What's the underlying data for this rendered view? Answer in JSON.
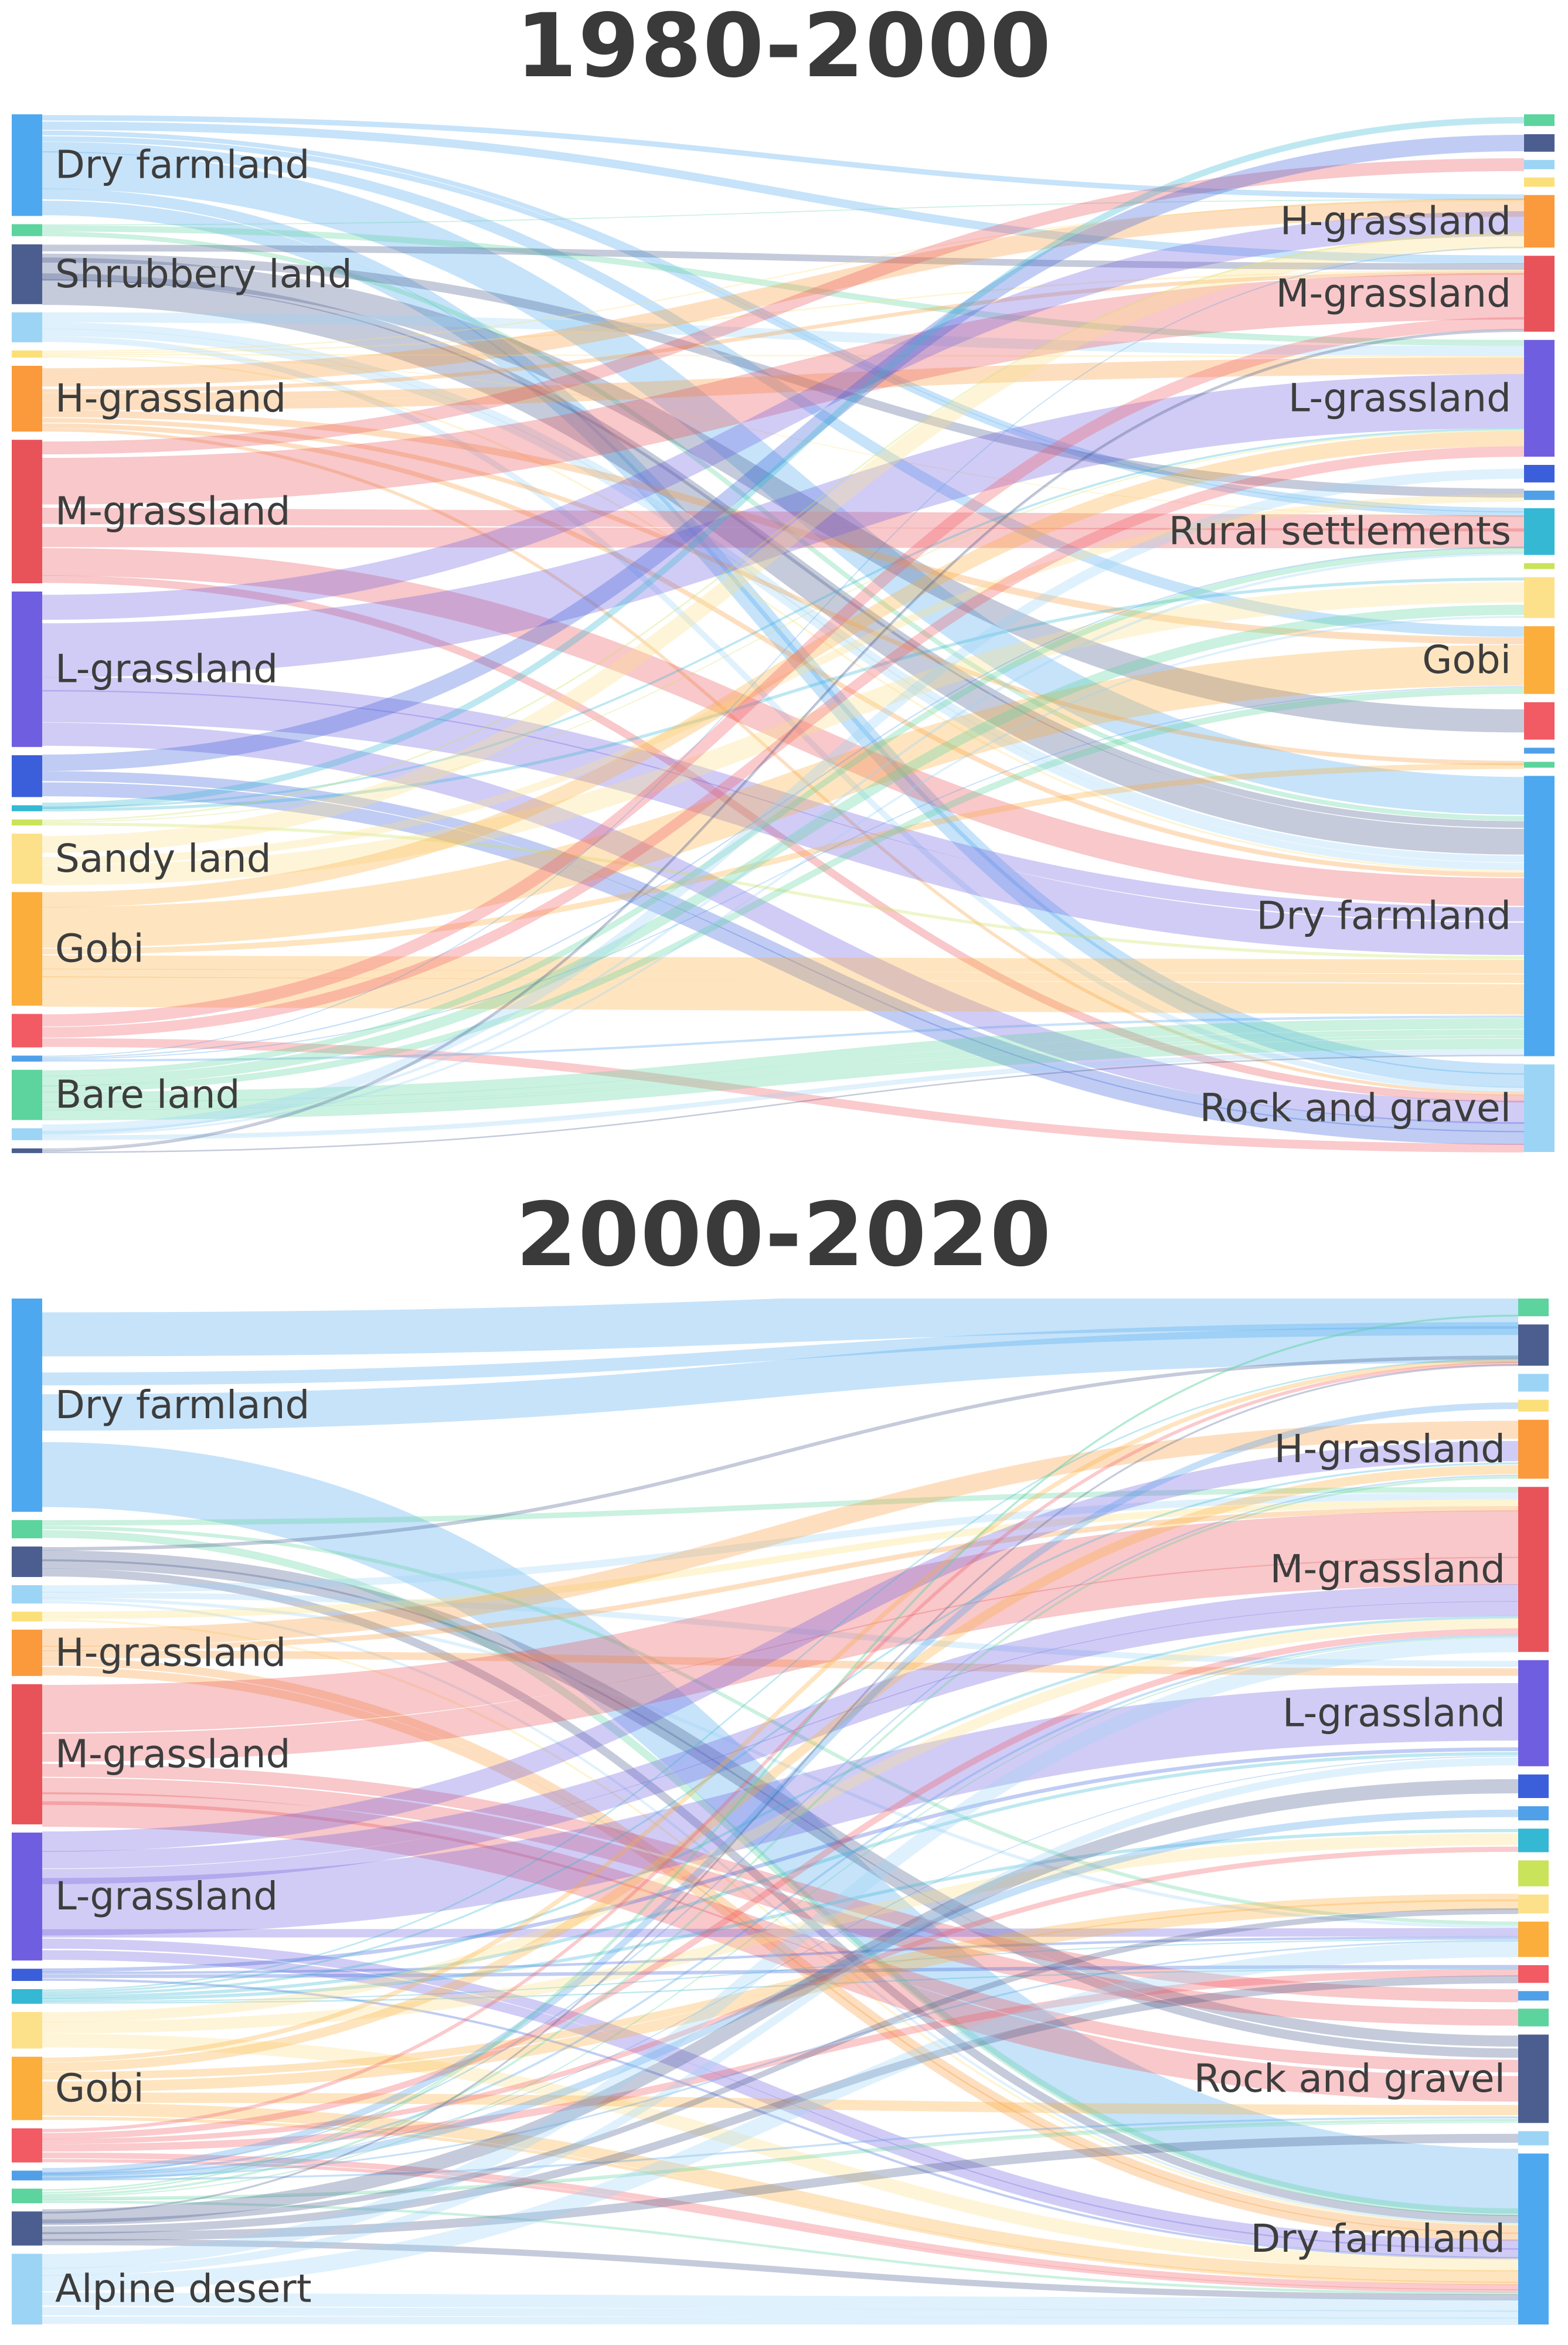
{
  "chart_data": [
    {
      "type": "sankey",
      "title": "1980-2000",
      "sources": [
        {
          "label": "Dry farmland",
          "color": "#4ea8f0",
          "weight": 8.5
        },
        {
          "label": "",
          "color": "#5dd39e",
          "weight": 1
        },
        {
          "label": "Shrubbery land",
          "color": "#4c5e8f",
          "weight": 5
        },
        {
          "label": "",
          "color": "#9cd4f5",
          "weight": 2.5
        },
        {
          "label": "",
          "color": "#fbe07a",
          "weight": 0.6
        },
        {
          "label": "H-grassland",
          "color": "#fa9a3c",
          "weight": 5.5
        },
        {
          "label": "M-grassland",
          "color": "#e8535a",
          "weight": 12
        },
        {
          "label": "L-grassland",
          "color": "#6f5fe0",
          "weight": 13
        },
        {
          "label": "",
          "color": "#3b5fdb",
          "weight": 3.5
        },
        {
          "label": "",
          "color": "#34b8d4",
          "weight": 0.5
        },
        {
          "label": "",
          "color": "#c9e35a",
          "weight": 0.5
        },
        {
          "label": "Sandy land",
          "color": "#fde08a",
          "weight": 4.2
        },
        {
          "label": "Gobi",
          "color": "#fbae3c",
          "weight": 9.5
        },
        {
          "label": "",
          "color": "#f25a64",
          "weight": 2.8
        },
        {
          "label": "",
          "color": "#4fa0e8",
          "weight": 0.5
        },
        {
          "label": "Bare land",
          "color": "#5dd39e",
          "weight": 4.2
        },
        {
          "label": "",
          "color": "#9cd4f5",
          "weight": 1
        },
        {
          "label": "",
          "color": "#4c5e8f",
          "weight": 0.3
        }
      ],
      "targets": [
        {
          "label": "",
          "color": "#5dd39e",
          "weight": 1
        },
        {
          "label": "",
          "color": "#4c5e8f",
          "weight": 1.5
        },
        {
          "label": "",
          "color": "#9cd4f5",
          "weight": 0.8
        },
        {
          "label": "",
          "color": "#fbe07a",
          "weight": 0.8
        },
        {
          "label": "H-grassland",
          "color": "#fa9a3c",
          "weight": 4.5
        },
        {
          "label": "M-grassland",
          "color": "#e8535a",
          "weight": 6.5
        },
        {
          "label": "L-grassland",
          "color": "#6f5fe0",
          "weight": 10
        },
        {
          "label": "",
          "color": "#3b5fdb",
          "weight": 1.5
        },
        {
          "label": "",
          "color": "#4fa0e8",
          "weight": 0.8
        },
        {
          "label": "Rural settlements",
          "color": "#34b8d4",
          "weight": 4
        },
        {
          "label": "",
          "color": "#c9e35a",
          "weight": 0.5
        },
        {
          "label": "",
          "color": "#fde08a",
          "weight": 3.5
        },
        {
          "label": "Gobi",
          "color": "#fbae3c",
          "weight": 5.8
        },
        {
          "label": "",
          "color": "#f25a64",
          "weight": 3.2
        },
        {
          "label": "",
          "color": "#4fa0e8",
          "weight": 0.5
        },
        {
          "label": "",
          "color": "#5dd39e",
          "weight": 0.5
        },
        {
          "label": "Dry farmland",
          "color": "#4ea8f0",
          "weight": 24
        },
        {
          "label": "Rock and gravel",
          "color": "#9cd4f5",
          "weight": 7.5
        }
      ]
    },
    {
      "type": "sankey",
      "title": "2000-2020",
      "sources": [
        {
          "label": "Dry farmland",
          "color": "#4ea8f0",
          "weight": 17.5
        },
        {
          "label": "",
          "color": "#5dd39e",
          "weight": 1.5
        },
        {
          "label": "",
          "color": "#4c5e8f",
          "weight": 2.5
        },
        {
          "label": "",
          "color": "#9cd4f5",
          "weight": 1.5
        },
        {
          "label": "",
          "color": "#fbe07a",
          "weight": 0.8
        },
        {
          "label": "H-grassland",
          "color": "#fa9a3c",
          "weight": 3.8
        },
        {
          "label": "M-grassland",
          "color": "#e8535a",
          "weight": 11.5
        },
        {
          "label": "L-grassland",
          "color": "#6f5fe0",
          "weight": 10.5
        },
        {
          "label": "",
          "color": "#3b5fdb",
          "weight": 1
        },
        {
          "label": "",
          "color": "#34b8d4",
          "weight": 1.2
        },
        {
          "label": "",
          "color": "#fde08a",
          "weight": 3
        },
        {
          "label": "Gobi",
          "color": "#fbae3c",
          "weight": 5.2
        },
        {
          "label": "",
          "color": "#f25a64",
          "weight": 2.8
        },
        {
          "label": "",
          "color": "#4fa0e8",
          "weight": 0.8
        },
        {
          "label": "",
          "color": "#5dd39e",
          "weight": 1.2
        },
        {
          "label": "",
          "color": "#4c5e8f",
          "weight": 2.8
        },
        {
          "label": "Alpine desert",
          "color": "#9cd4f5",
          "weight": 5.8
        }
      ],
      "targets": [
        {
          "label": "",
          "color": "#5dd39e",
          "weight": 1.5
        },
        {
          "label": "",
          "color": "#4c5e8f",
          "weight": 3.5
        },
        {
          "label": "",
          "color": "#9cd4f5",
          "weight": 1.5
        },
        {
          "label": "",
          "color": "#fbe07a",
          "weight": 1
        },
        {
          "label": "H-grassland",
          "color": "#fa9a3c",
          "weight": 5
        },
        {
          "label": "M-grassland",
          "color": "#e8535a",
          "weight": 14
        },
        {
          "label": "L-grassland",
          "color": "#6f5fe0",
          "weight": 9
        },
        {
          "label": "",
          "color": "#3b5fdb",
          "weight": 2
        },
        {
          "label": "",
          "color": "#4fa0e8",
          "weight": 1.2
        },
        {
          "label": "",
          "color": "#34b8d4",
          "weight": 2
        },
        {
          "label": "",
          "color": "#c9e35a",
          "weight": 2.2
        },
        {
          "label": "",
          "color": "#fde08a",
          "weight": 1.6
        },
        {
          "label": "",
          "color": "#fbae3c",
          "weight": 3
        },
        {
          "label": "",
          "color": "#f25a64",
          "weight": 1.5
        },
        {
          "label": "",
          "color": "#4fa0e8",
          "weight": 0.8
        },
        {
          "label": "",
          "color": "#5dd39e",
          "weight": 1.5
        },
        {
          "label": "Rock and gravel",
          "color": "#4c5e8f",
          "weight": 7.5
        },
        {
          "label": "",
          "color": "#9cd4f5",
          "weight": 1.2
        },
        {
          "label": "Dry farmland",
          "color": "#4ea8f0",
          "weight": 14.5
        }
      ]
    }
  ]
}
